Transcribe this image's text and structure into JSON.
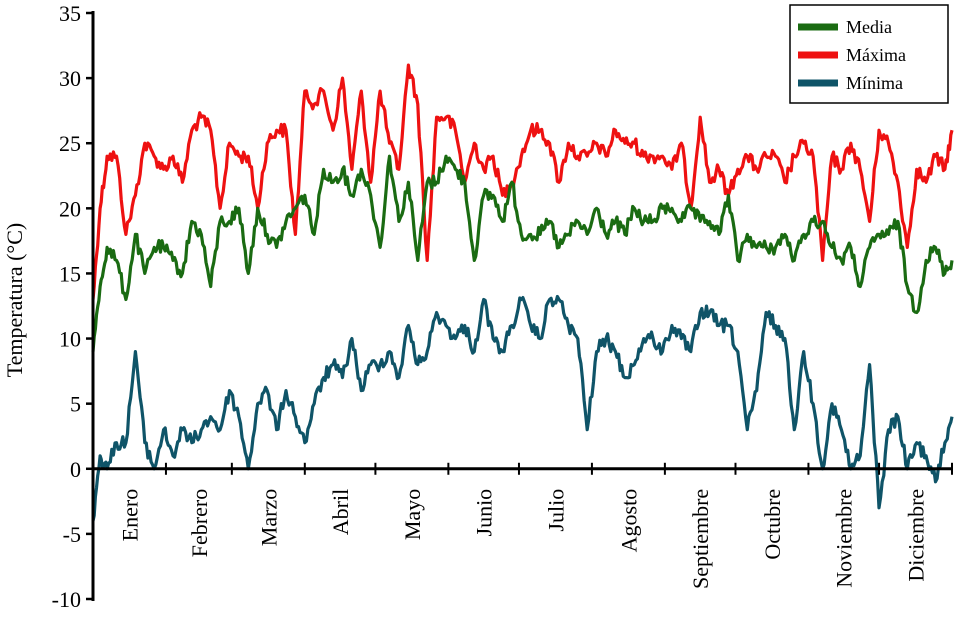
{
  "chart_data": {
    "type": "line",
    "title": "",
    "xlabel": "",
    "ylabel": "Temperatura (°C)",
    "ylim": [
      -10,
      35
    ],
    "yticks": [
      -10,
      -5,
      0,
      5,
      10,
      15,
      20,
      25,
      30,
      35
    ],
    "xlim": [
      0,
      365
    ],
    "grid": false,
    "legend_position": "top-right",
    "months": [
      "Enero",
      "Febrero",
      "Marzo",
      "Abril",
      "Mayo",
      "Junio",
      "Julio",
      "Agosto",
      "Septiembre",
      "Octubre",
      "Noviembre",
      "Diciembre"
    ],
    "series": [
      {
        "name": "Media",
        "color": "#1a6b12",
        "x": [
          0,
          3,
          6,
          10,
          14,
          18,
          22,
          26,
          30,
          34,
          38,
          42,
          46,
          50,
          54,
          58,
          62,
          66,
          70,
          74,
          78,
          82,
          86,
          90,
          94,
          98,
          102,
          106,
          110,
          114,
          118,
          122,
          126,
          130,
          134,
          138,
          142,
          146,
          150,
          154,
          158,
          162,
          166,
          170,
          174,
          178,
          182,
          186,
          190,
          194,
          198,
          202,
          206,
          210,
          214,
          218,
          222,
          226,
          230,
          234,
          238,
          242,
          246,
          250,
          254,
          258,
          262,
          266,
          270,
          274,
          278,
          282,
          286,
          290,
          294,
          298,
          302,
          306,
          310,
          314,
          318,
          322,
          326,
          330,
          334,
          338,
          342,
          346,
          350,
          354,
          358,
          362,
          365
        ],
        "y": [
          9,
          14,
          17,
          16,
          13,
          18,
          15,
          17,
          17,
          16,
          15,
          19,
          18,
          14,
          19,
          19,
          20,
          15,
          20,
          18,
          17,
          19,
          20,
          21,
          18,
          23,
          22,
          23,
          21,
          23,
          21,
          17,
          24,
          19,
          22,
          16,
          22,
          22,
          24,
          23,
          22,
          16,
          21,
          21,
          19,
          22,
          18,
          18,
          18,
          19,
          17,
          18,
          19,
          18,
          20,
          18,
          19,
          18,
          20,
          19,
          19,
          20,
          20,
          19,
          20,
          19,
          19,
          18,
          21,
          16,
          18,
          17,
          17,
          17,
          18,
          16,
          18,
          19,
          19,
          17,
          16,
          17,
          14,
          17,
          18,
          18,
          19,
          14,
          12,
          16,
          17,
          15,
          16
        ]
      },
      {
        "name": "Máxima",
        "color": "#ee1111",
        "x": [
          0,
          3,
          6,
          10,
          14,
          18,
          22,
          26,
          30,
          34,
          38,
          42,
          46,
          50,
          54,
          58,
          62,
          66,
          70,
          74,
          78,
          82,
          86,
          90,
          94,
          98,
          102,
          106,
          110,
          114,
          118,
          122,
          126,
          130,
          134,
          138,
          142,
          146,
          150,
          154,
          158,
          162,
          166,
          170,
          174,
          178,
          182,
          186,
          190,
          194,
          198,
          202,
          206,
          210,
          214,
          218,
          222,
          226,
          230,
          234,
          238,
          242,
          246,
          250,
          254,
          258,
          262,
          266,
          270,
          274,
          278,
          282,
          286,
          290,
          294,
          298,
          302,
          306,
          310,
          314,
          318,
          322,
          326,
          330,
          334,
          338,
          342,
          346,
          350,
          354,
          358,
          362,
          365
        ],
        "y": [
          13,
          20,
          24,
          24,
          18,
          21,
          25,
          24,
          23,
          24,
          22,
          26,
          27,
          26,
          20,
          25,
          24,
          24,
          20,
          25,
          26,
          26,
          18,
          29,
          28,
          29,
          26,
          30,
          23,
          29,
          22,
          29,
          25,
          23,
          31,
          28,
          16,
          27,
          27,
          26,
          22,
          25,
          23,
          24,
          21,
          22,
          24,
          26,
          26,
          25,
          22,
          25,
          24,
          24,
          25,
          24,
          26,
          25,
          25,
          24,
          24,
          24,
          23,
          25,
          20,
          27,
          22,
          23,
          21,
          23,
          24,
          23,
          24,
          24,
          22,
          24,
          25,
          24,
          16,
          24,
          23,
          25,
          23,
          19,
          26,
          25,
          22,
          17,
          23,
          22,
          24,
          23,
          26
        ]
      },
      {
        "name": "Mínima",
        "color": "#0f5468",
        "x": [
          0,
          3,
          6,
          10,
          14,
          18,
          22,
          26,
          30,
          34,
          38,
          42,
          46,
          50,
          54,
          58,
          62,
          66,
          70,
          74,
          78,
          82,
          86,
          90,
          94,
          98,
          102,
          106,
          110,
          114,
          118,
          122,
          126,
          130,
          134,
          138,
          142,
          146,
          150,
          154,
          158,
          162,
          166,
          170,
          174,
          178,
          182,
          186,
          190,
          194,
          198,
          202,
          206,
          210,
          214,
          218,
          222,
          226,
          230,
          234,
          238,
          242,
          246,
          250,
          254,
          258,
          262,
          266,
          270,
          274,
          278,
          282,
          286,
          290,
          294,
          298,
          302,
          306,
          310,
          314,
          318,
          322,
          326,
          330,
          334,
          338,
          342,
          346,
          350,
          354,
          358,
          362,
          365
        ],
        "y": [
          -4,
          1,
          0,
          2,
          2,
          9,
          2,
          0,
          3,
          1,
          3,
          2,
          3,
          4,
          3,
          6,
          4,
          0,
          5,
          6,
          3,
          6,
          4,
          2,
          5,
          7,
          8,
          7,
          10,
          6,
          8,
          8,
          9,
          7,
          11,
          8,
          9,
          12,
          11,
          10,
          11,
          9,
          13,
          10,
          9,
          11,
          13,
          11,
          10,
          13,
          13,
          11,
          10,
          3,
          9,
          10,
          9,
          7,
          8,
          10,
          10,
          9,
          11,
          10,
          9,
          12,
          12,
          11,
          11,
          9,
          3,
          6,
          12,
          11,
          10,
          3,
          9,
          5,
          0,
          5,
          3,
          0,
          1,
          8,
          -3,
          3,
          4,
          0,
          2,
          1,
          -1,
          2,
          4
        ]
      }
    ]
  }
}
